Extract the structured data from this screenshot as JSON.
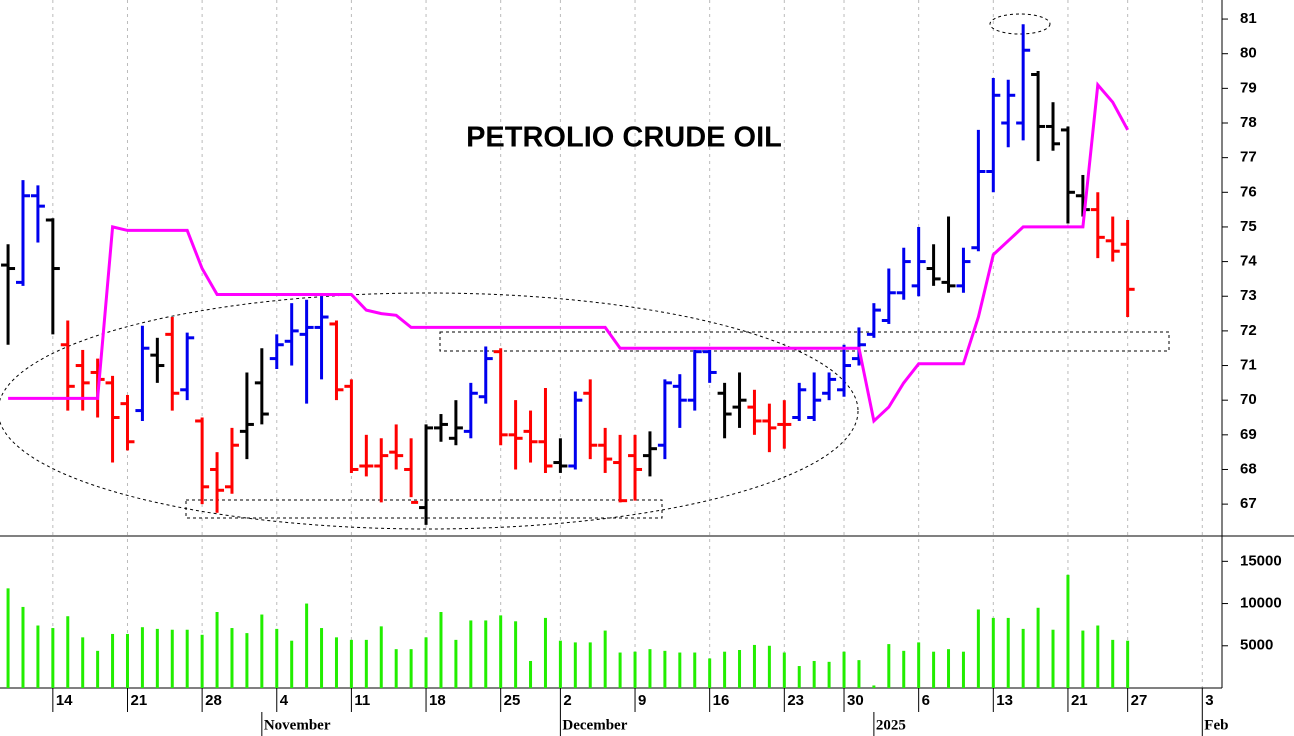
{
  "chart_data": [
    {
      "type": "ohlc",
      "title": "PETROLIO CRUDE OIL",
      "open": [
        73.9,
        73.4,
        75.9,
        75.2,
        71.6,
        71.0,
        70.8,
        70.5,
        69.9,
        69.7,
        71.3,
        71.9,
        70.3,
        69.4,
        68.0,
        67.5,
        69.1,
        70.5,
        71.2,
        71.7,
        71.9,
        72.1,
        72.2,
        70.4,
        68.1,
        68.1,
        68.5,
        68.0,
        66.9,
        69.2,
        68.9,
        69.1,
        70.1,
        71.4,
        69.0,
        69.1,
        68.8,
        68.2,
        68.1,
        70.2,
        68.7,
        68.2,
        68.4,
        68.4,
        68.7,
        70.4,
        70.0,
        71.4,
        70.2,
        69.8,
        69.8,
        69.4,
        69.3,
        69.5,
        69.5,
        70.2,
        70.3,
        71.2,
        71.9,
        72.3,
        73.1,
        73.3,
        73.8,
        73.4,
        73.3,
        74.4,
        76.6,
        78.0,
        78.0,
        79.4,
        77.9,
        77.8,
        75.9,
        75.5,
        74.6,
        74.5
      ],
      "high": [
        74.5,
        76.35,
        76.2,
        75.25,
        72.3,
        71.45,
        71.2,
        70.7,
        70.15,
        72.15,
        71.8,
        72.4,
        71.95,
        69.5,
        68.5,
        69.2,
        70.8,
        71.5,
        71.9,
        72.8,
        72.9,
        73.0,
        72.3,
        70.6,
        69.0,
        68.9,
        69.3,
        68.9,
        69.3,
        69.6,
        70.0,
        70.5,
        71.55,
        71.5,
        70.0,
        69.7,
        70.35,
        68.9,
        70.25,
        70.6,
        69.2,
        69.0,
        69.0,
        69.1,
        70.6,
        70.75,
        71.45,
        71.45,
        70.5,
        70.8,
        70.3,
        69.9,
        70.0,
        70.5,
        70.8,
        70.8,
        71.6,
        72.1,
        72.8,
        73.8,
        74.4,
        75.0,
        74.5,
        75.3,
        74.4,
        77.8,
        79.3,
        79.25,
        80.85,
        79.5,
        78.6,
        77.9,
        76.5,
        76.0,
        75.3,
        75.2
      ],
      "low": [
        71.6,
        73.3,
        74.55,
        71.9,
        69.7,
        69.7,
        69.5,
        68.2,
        68.55,
        69.4,
        70.5,
        69.7,
        70.0,
        67.0,
        66.75,
        67.3,
        68.3,
        69.3,
        70.9,
        71.0,
        69.9,
        70.6,
        70.0,
        67.9,
        67.8,
        67.05,
        68.0,
        67.2,
        66.4,
        68.8,
        68.7,
        68.9,
        69.9,
        68.7,
        68.0,
        68.2,
        67.9,
        67.9,
        68.0,
        68.3,
        67.9,
        67.05,
        67.1,
        67.8,
        68.3,
        69.2,
        69.7,
        70.5,
        68.9,
        69.2,
        69.0,
        68.5,
        68.6,
        69.4,
        69.4,
        70.0,
        70.1,
        71.0,
        71.8,
        72.2,
        72.9,
        73.0,
        73.3,
        73.1,
        73.1,
        74.3,
        76.0,
        77.3,
        77.5,
        76.9,
        77.2,
        75.1,
        75.3,
        74.1,
        74.0,
        72.4
      ],
      "close": [
        73.8,
        75.9,
        75.6,
        73.8,
        70.4,
        70.5,
        70.6,
        69.5,
        68.8,
        71.5,
        71.0,
        70.2,
        71.8,
        67.5,
        67.4,
        68.7,
        69.3,
        69.6,
        71.6,
        72.0,
        72.1,
        72.4,
        70.3,
        68.0,
        68.1,
        68.4,
        68.4,
        67.05,
        69.2,
        69.3,
        69.2,
        70.2,
        71.2,
        69.0,
        68.9,
        68.8,
        68.1,
        68.1,
        70.0,
        68.7,
        68.3,
        67.1,
        68.0,
        68.6,
        70.5,
        70.0,
        71.4,
        70.8,
        69.6,
        70.0,
        69.4,
        69.2,
        69.3,
        70.3,
        70.0,
        70.6,
        71.0,
        71.6,
        72.6,
        73.1,
        74.0,
        74.0,
        73.5,
        73.3,
        74.0,
        76.6,
        78.8,
        78.8,
        80.1,
        77.9,
        77.4,
        76.0,
        75.5,
        74.7,
        74.3,
        73.2
      ],
      "colors": [
        "#000",
        "#00e",
        "#00e",
        "#000",
        "#f00",
        "#f00",
        "#f00",
        "#f00",
        "#f00",
        "#00e",
        "#000",
        "#f00",
        "#00e",
        "#f00",
        "#f00",
        "#f00",
        "#000",
        "#000",
        "#00e",
        "#00e",
        "#00e",
        "#00e",
        "#f00",
        "#f00",
        "#f00",
        "#f00",
        "#f00",
        "#f00",
        "#000",
        "#000",
        "#000",
        "#00e",
        "#00e",
        "#f00",
        "#f00",
        "#f00",
        "#f00",
        "#000",
        "#00e",
        "#f00",
        "#f00",
        "#f00",
        "#f00",
        "#000",
        "#00e",
        "#00e",
        "#00e",
        "#00e",
        "#000",
        "#000",
        "#f00",
        "#f00",
        "#f00",
        "#00e",
        "#00e",
        "#00e",
        "#00e",
        "#00e",
        "#00e",
        "#00e",
        "#00e",
        "#00e",
        "#000",
        "#000",
        "#00e",
        "#00e",
        "#00e",
        "#00e",
        "#00e",
        "#000",
        "#000",
        "#000",
        "#000",
        "#f00",
        "#f00",
        "#f00"
      ],
      "line": {
        "color": "#ff00ff",
        "values": [
          70.05,
          70.05,
          70.05,
          70.05,
          70.05,
          70.05,
          70.05,
          75.0,
          74.9,
          74.9,
          74.9,
          74.9,
          74.9,
          73.8,
          73.05,
          73.05,
          73.05,
          73.05,
          73.05,
          73.05,
          73.05,
          73.05,
          73.05,
          73.05,
          72.6,
          72.5,
          72.45,
          72.1,
          72.1,
          72.1,
          72.1,
          72.1,
          72.1,
          72.1,
          72.1,
          72.1,
          72.1,
          72.1,
          72.1,
          72.1,
          72.1,
          71.5,
          71.5,
          71.5,
          71.5,
          71.5,
          71.5,
          71.5,
          71.5,
          71.5,
          71.5,
          71.5,
          71.5,
          71.5,
          71.5,
          71.5,
          71.5,
          71.5,
          69.4,
          69.8,
          70.5,
          71.05,
          71.05,
          71.05,
          71.05,
          72.4,
          74.2,
          74.6,
          75.0,
          75.0,
          75.0,
          75.0,
          75.0,
          79.1,
          78.6,
          77.8
        ]
      },
      "xlim": [
        -0.54,
        81.32
      ],
      "ylim": [
        66.08,
        81.55
      ],
      "yticks": [
        67,
        68,
        69,
        70,
        71,
        72,
        73,
        74,
        75,
        76,
        77,
        78,
        79,
        80,
        81
      ]
    },
    {
      "type": "bar",
      "color": "#22ee00",
      "values": [
        11800,
        9600,
        7400,
        7100,
        8500,
        6000,
        4400,
        6400,
        6400,
        7200,
        7000,
        6900,
        6900,
        6300,
        9000,
        7100,
        6500,
        8700,
        7000,
        5600,
        10000,
        7100,
        6000,
        5700,
        5700,
        7300,
        4600,
        4600,
        6000,
        9000,
        5700,
        8000,
        8000,
        8600,
        7900,
        3200,
        8300,
        5600,
        5400,
        5400,
        6800,
        4200,
        4300,
        4600,
        4400,
        4200,
        4200,
        3500,
        4300,
        4500,
        5100,
        5000,
        4200,
        2600,
        3200,
        3100,
        4300,
        3300,
        300,
        5200,
        4400,
        5400,
        4300,
        4600,
        4300,
        9300,
        8300,
        8300,
        7000,
        9500,
        6900,
        13400,
        6800,
        7400,
        5700,
        5600
      ],
      "xlim": [
        -0.54,
        81.32
      ],
      "ylim": [
        0,
        18000
      ],
      "yticks": [
        5000,
        10000,
        15000
      ],
      "xticks": [
        {
          "value": 3,
          "label": "14"
        },
        {
          "value": 8,
          "label": "21"
        },
        {
          "value": 13,
          "label": "28"
        },
        {
          "value": 18,
          "label": "4"
        },
        {
          "value": 23,
          "label": "11"
        },
        {
          "value": 28,
          "label": "18"
        },
        {
          "value": 33,
          "label": "25"
        },
        {
          "value": 37,
          "label": "2"
        },
        {
          "value": 42,
          "label": "9"
        },
        {
          "value": 47,
          "label": "16"
        },
        {
          "value": 52,
          "label": "23"
        },
        {
          "value": 56,
          "label": "30"
        },
        {
          "value": 61,
          "label": "6"
        },
        {
          "value": 66,
          "label": "13"
        },
        {
          "value": 71,
          "label": "21"
        },
        {
          "value": 75,
          "label": "27"
        },
        {
          "value": 80,
          "label": "3"
        }
      ],
      "month_ticks": [
        {
          "value": 17,
          "label": "November"
        },
        {
          "value": 37,
          "label": "December"
        },
        {
          "value": 58,
          "label": "2025"
        },
        {
          "value": 80,
          "label": "Feb"
        }
      ]
    }
  ]
}
